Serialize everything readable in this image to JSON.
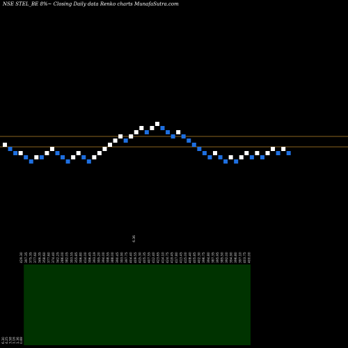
{
  "chart_title": "NSE STEL_BE 8%~  Closing Daily data  Renko  charts MunafaSutra.com",
  "colors": {
    "background": "#000000",
    "up_brick": "#ffffff",
    "down_brick": "#1e6fe0",
    "reference_line": "#b8862b",
    "volume_panel": "#003300"
  },
  "chart_data": [
    {
      "type": "renko",
      "title": "NSE STEL_BE 8%~  Closing Daily data  Renko  charts MunafaSutra.com",
      "bricks": [
        {
          "dir": "up",
          "level": 4
        },
        {
          "dir": "down",
          "level": 3
        },
        {
          "dir": "down",
          "level": 2
        },
        {
          "dir": "up",
          "level": 2
        },
        {
          "dir": "down",
          "level": 1
        },
        {
          "dir": "down",
          "level": 0
        },
        {
          "dir": "up",
          "level": 1
        },
        {
          "dir": "down",
          "level": 1
        },
        {
          "dir": "up",
          "level": 2
        },
        {
          "dir": "up",
          "level": 3
        },
        {
          "dir": "down",
          "level": 2
        },
        {
          "dir": "down",
          "level": 1
        },
        {
          "dir": "down",
          "level": 0
        },
        {
          "dir": "up",
          "level": 1
        },
        {
          "dir": "up",
          "level": 2
        },
        {
          "dir": "down",
          "level": 1
        },
        {
          "dir": "down",
          "level": 0
        },
        {
          "dir": "up",
          "level": 1
        },
        {
          "dir": "up",
          "level": 2
        },
        {
          "dir": "up",
          "level": 3
        },
        {
          "dir": "up",
          "level": 4
        },
        {
          "dir": "up",
          "level": 5
        },
        {
          "dir": "up",
          "level": 6
        },
        {
          "dir": "down",
          "level": 5
        },
        {
          "dir": "up",
          "level": 6
        },
        {
          "dir": "up",
          "level": 7
        },
        {
          "dir": "up",
          "level": 8
        },
        {
          "dir": "down",
          "level": 7
        },
        {
          "dir": "up",
          "level": 8
        },
        {
          "dir": "up",
          "level": 9
        },
        {
          "dir": "down",
          "level": 8
        },
        {
          "dir": "down",
          "level": 7
        },
        {
          "dir": "down",
          "level": 6
        },
        {
          "dir": "up",
          "level": 7
        },
        {
          "dir": "down",
          "level": 6
        },
        {
          "dir": "down",
          "level": 5
        },
        {
          "dir": "down",
          "level": 4
        },
        {
          "dir": "down",
          "level": 3
        },
        {
          "dir": "down",
          "level": 2
        },
        {
          "dir": "down",
          "level": 1
        },
        {
          "dir": "up",
          "level": 2
        },
        {
          "dir": "down",
          "level": 1
        },
        {
          "dir": "down",
          "level": 0
        },
        {
          "dir": "up",
          "level": 1
        },
        {
          "dir": "down",
          "level": 0
        },
        {
          "dir": "up",
          "level": 1
        },
        {
          "dir": "up",
          "level": 2
        },
        {
          "dir": "down",
          "level": 1
        },
        {
          "dir": "up",
          "level": 2
        },
        {
          "dir": "down",
          "level": 1
        },
        {
          "dir": "up",
          "level": 2
        },
        {
          "dir": "up",
          "level": 3
        },
        {
          "dir": "down",
          "level": 2
        },
        {
          "dir": "up",
          "level": 3
        },
        {
          "dir": "down",
          "level": 2
        }
      ],
      "reference_lines": [
        6.0,
        3.5
      ],
      "volume_panel_start_brick": 4,
      "price_labels": [
        "429.30",
        "397.35",
        "375.35",
        "377.60",
        "346.35",
        "358.60",
        "377.60",
        "374.40",
        "342.25",
        "286.00",
        "382.05",
        "393.55",
        "355.85",
        "396.80",
        "414.00",
        "396.45",
        "393.19",
        "395.20",
        "394.00",
        "398.55",
        "388.00",
        "390.45",
        "393.90",
        "397.75",
        "404.40",
        "409.55",
        "415.30",
        "405.35",
        "407.55",
        "412.40",
        "423.65",
        "414.10",
        "424.75",
        "419.45",
        "417.80",
        "413.45",
        "415.00",
        "408.40",
        "405.85",
        "402.30",
        "396.75",
        "394.80",
        "387.35",
        "395.95",
        "385.50",
        "392.00",
        "394.90",
        "396.80",
        "397.10",
        "403.75",
        "400.00"
      ],
      "side_labels": [
        "6.30",
        "4.25",
        "3.58",
        "1.16",
        "1.36",
        "0.88"
      ],
      "top_marker_label": "6.36"
    }
  ]
}
